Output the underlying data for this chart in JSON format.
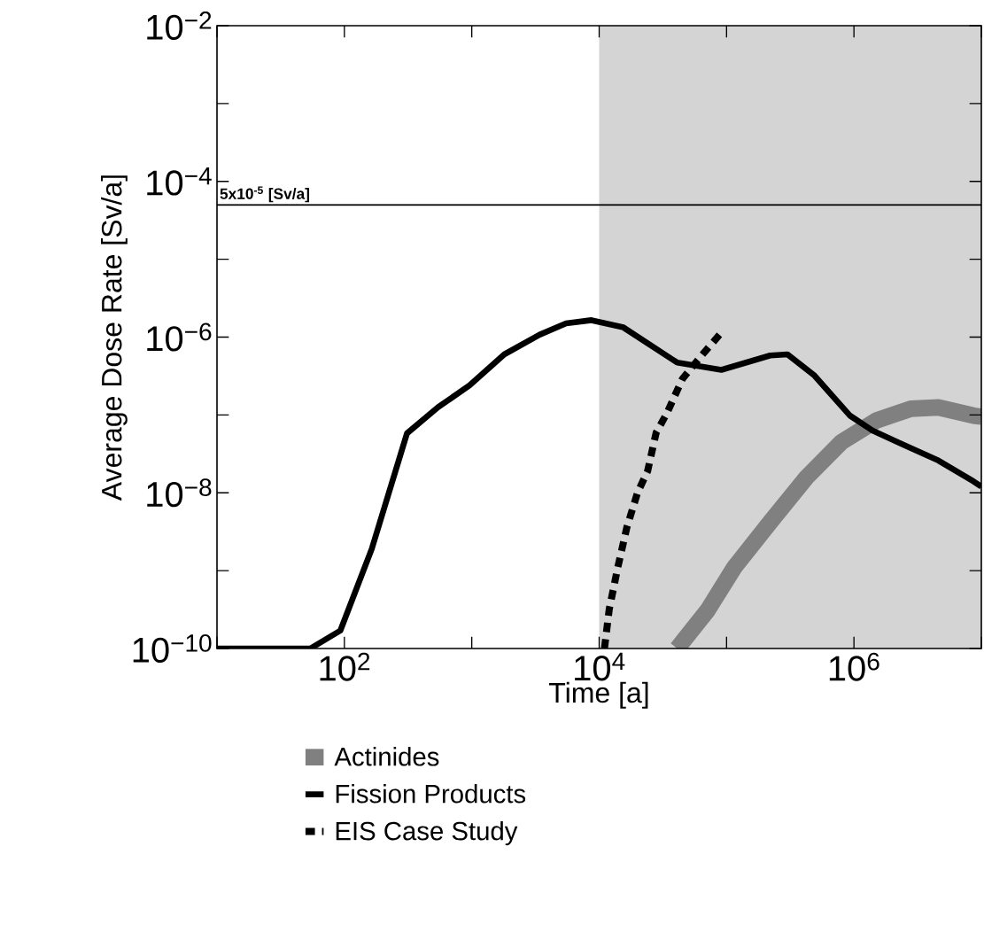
{
  "chart_data": {
    "type": "line",
    "xlabel": "Time [a]",
    "ylabel": "Average Dose Rate [Sv/a]",
    "log": "xy",
    "legend": "bottom",
    "grid": false,
    "xlim": [
      10,
      10000000
    ],
    "ylim": [
      1e-10,
      0.01
    ],
    "xticks": [
      {
        "value": 10,
        "label": null
      },
      {
        "value": 100,
        "label": "10$^{2}$"
      },
      {
        "value": 1000,
        "label": null
      },
      {
        "value": 10000,
        "label": "10$^{4}$"
      },
      {
        "value": 100000,
        "label": null
      },
      {
        "value": 1000000,
        "label": "10$^{6}$"
      },
      {
        "value": 10000000,
        "label": null
      }
    ],
    "yticks": [
      {
        "value": 1e-10,
        "label": "10$^{−10}$"
      },
      {
        "value": 1e-09,
        "label": null
      },
      {
        "value": 1e-08,
        "label": "10$^{−8}$"
      },
      {
        "value": 1e-07,
        "label": null
      },
      {
        "value": 1e-06,
        "label": "10$^{−6}$"
      },
      {
        "value": 1e-05,
        "label": null
      },
      {
        "value": 0.0001,
        "label": "10$^{−4}$"
      },
      {
        "value": 0.001,
        "label": null
      },
      {
        "value": 0.01,
        "label": "10$^{−2}$"
      }
    ],
    "bands": [
      {
        "axis": "x",
        "from": 10000,
        "to": 10000000,
        "color": "#d4d4d4"
      }
    ],
    "ref_lines": [
      {
        "axis": "y",
        "value": 5e-05,
        "label": "5x10$^{-5}$ [Sv/a]",
        "color": "#000000"
      }
    ],
    "series": [
      {
        "name": "Actinides",
        "color": "#808080",
        "line_style": "solid",
        "x": [
          41000,
          71000,
          115000,
          220000,
          420000,
          800000,
          1500000,
          2800000,
          4600000,
          8700000,
          10000000
        ],
        "values": [
          1e-10,
          3.1e-10,
          1.1e-09,
          4.2e-09,
          1.55e-08,
          4.5e-08,
          8.5e-08,
          1.2e-07,
          1.25e-07,
          9.8e-08,
          9.5e-08
        ]
      },
      {
        "name": "Fission Products",
        "color": "#000000",
        "line_style": "solid",
        "x": [
          10,
          54,
          93,
          164,
          310,
          545,
          960,
          1800,
          3400,
          5500,
          8700,
          15500,
          41000,
          91000,
          220000,
          300000,
          490000,
          930000,
          1400000,
          2400000,
          4600000,
          8700000,
          10000000
        ],
        "values": [
          1e-10,
          1e-10,
          1.7e-10,
          1.9e-09,
          5.8e-08,
          1.26e-07,
          2.4e-07,
          6e-07,
          1.07e-06,
          1.5e-06,
          1.65e-06,
          1.33e-06,
          4.7e-07,
          3.8e-07,
          5.8e-07,
          6e-07,
          3.2e-07,
          9.8e-08,
          6.3e-08,
          4.2e-08,
          2.6e-08,
          1.4e-08,
          1.2e-08
        ]
      },
      {
        "name": "EIS Case Study",
        "color": "#000000",
        "line_style": "dashed",
        "x": [
          11000,
          12000,
          14000,
          16500,
          20000,
          24000,
          28000,
          34000,
          45000,
          67000,
          88000
        ],
        "values": [
          1e-10,
          3.2e-10,
          1.1e-09,
          3.6e-09,
          1e-08,
          1.9e-08,
          5.9e-08,
          1.05e-07,
          2.9e-07,
          6.4e-07,
          1.07e-06
        ]
      }
    ]
  }
}
